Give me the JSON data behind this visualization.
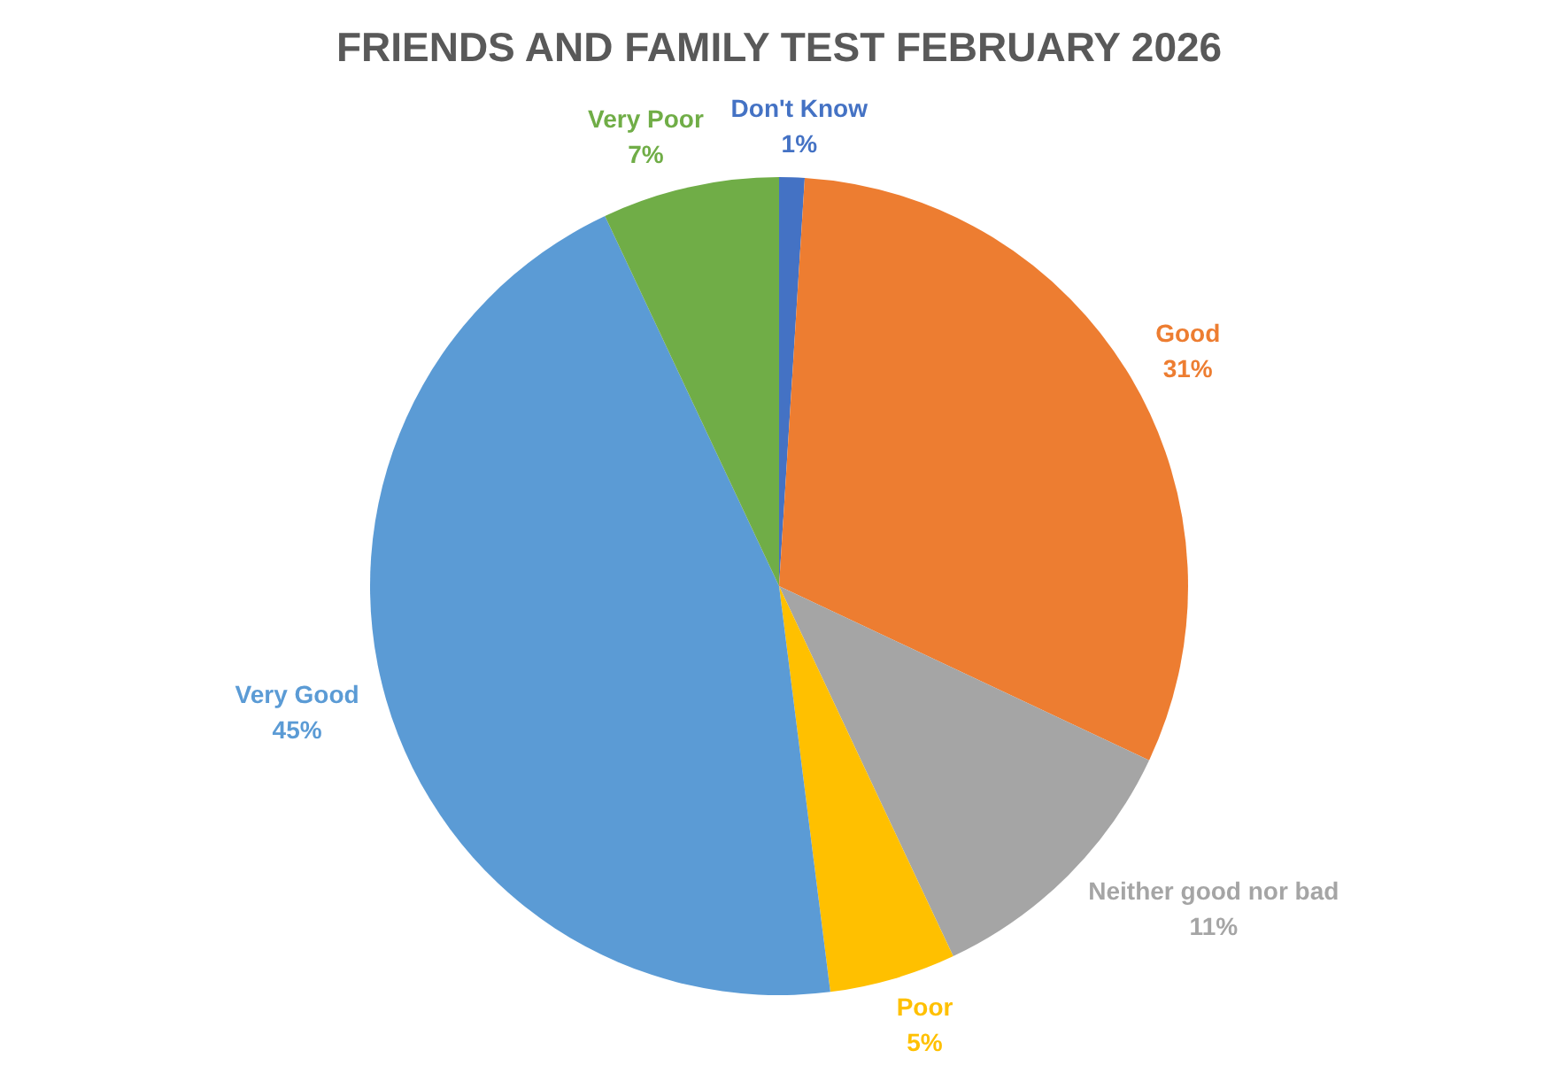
{
  "chart_data": {
    "type": "pie",
    "title": "FRIENDS AND FAMILY TEST FEBRUARY 2026",
    "categories": [
      "Don't Know",
      "Good",
      "Neither good nor bad",
      "Poor",
      "Very Good",
      "Very Poor"
    ],
    "values": [
      1,
      31,
      11,
      5,
      45,
      7
    ],
    "colors": [
      "#4472c4",
      "#ed7d31",
      "#a5a5a5",
      "#ffc000",
      "#5b9bd5",
      "#70ad47"
    ],
    "value_labels": [
      "1%",
      "31%",
      "11%",
      "5%",
      "45%",
      "7%"
    ],
    "legend": false
  }
}
